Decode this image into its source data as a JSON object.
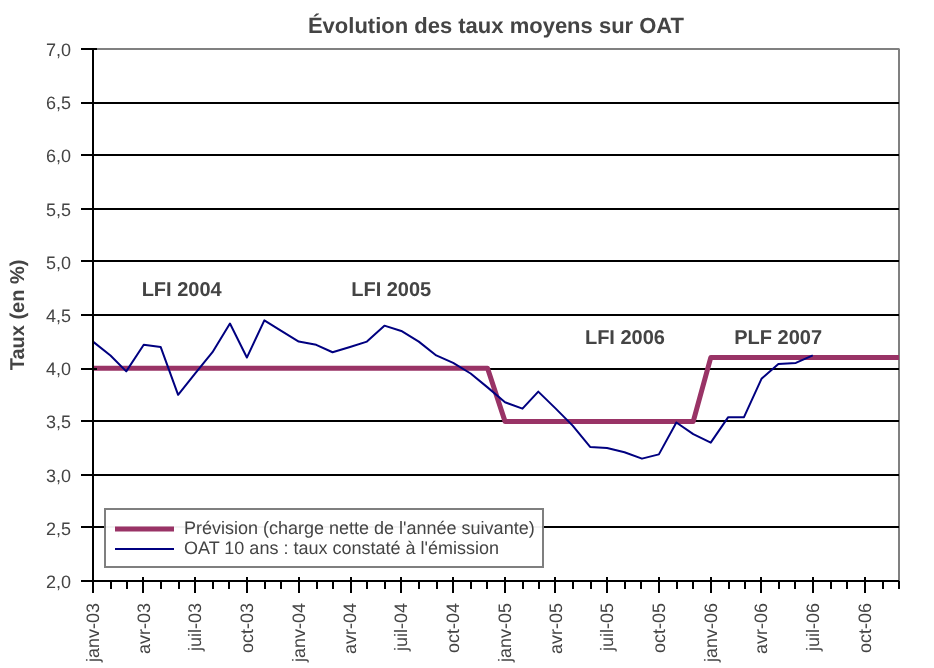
{
  "chart_data": {
    "type": "line",
    "title": "Évolution des taux moyens sur OAT",
    "ylabel": "Taux (en %)",
    "xlim": [
      "2003-01",
      "2006-12"
    ],
    "xticks": [
      {
        "value": "2003-01",
        "label": "janv-03"
      },
      {
        "value": "2003-04",
        "label": "avr-03"
      },
      {
        "value": "2003-07",
        "label": "juil-03"
      },
      {
        "value": "2003-10",
        "label": "oct-03"
      },
      {
        "value": "2004-01",
        "label": "janv-04"
      },
      {
        "value": "2004-04",
        "label": "avr-04"
      },
      {
        "value": "2004-07",
        "label": "juil-04"
      },
      {
        "value": "2004-10",
        "label": "oct-04"
      },
      {
        "value": "2005-01",
        "label": "janv-05"
      },
      {
        "value": "2005-04",
        "label": "avr-05"
      },
      {
        "value": "2005-07",
        "label": "juil-05"
      },
      {
        "value": "2005-10",
        "label": "oct-05"
      },
      {
        "value": "2006-01",
        "label": "janv-06"
      },
      {
        "value": "2006-04",
        "label": "avr-06"
      },
      {
        "value": "2006-07",
        "label": "juil-06"
      },
      {
        "value": "2006-10",
        "label": "oct-06"
      }
    ],
    "ylim": [
      2,
      7
    ],
    "yticks": [
      {
        "value": 2,
        "label": "2,0"
      },
      {
        "value": 2.5,
        "label": "2,5"
      },
      {
        "value": 3,
        "label": "3,0"
      },
      {
        "value": 3.5,
        "label": "3,5"
      },
      {
        "value": 4,
        "label": "4,0"
      },
      {
        "value": 4.5,
        "label": "4,5"
      },
      {
        "value": 5,
        "label": "5,0"
      },
      {
        "value": 5.5,
        "label": "5,5"
      },
      {
        "value": 6,
        "label": "6,0"
      },
      {
        "value": 6.5,
        "label": "6,5"
      },
      {
        "value": 7,
        "label": "7,0"
      }
    ],
    "grid": "y",
    "legend": "bottom left",
    "marker": "none",
    "line_style": "solid",
    "series": [
      {
        "name": "Prévision (charge nette de l'année suivante)",
        "color": "#993366",
        "x": [
          "2003-01",
          "2004-12",
          "2005-01",
          "2005-12",
          "2006-01",
          "2006-12"
        ],
        "values": [
          4.0,
          4.0,
          3.5,
          3.5,
          4.1,
          4.1
        ]
      },
      {
        "name": "OAT 10 ans : taux constaté à l'émission",
        "color": "#000080",
        "x": [
          "2003-01",
          "2003-02",
          "2003-03",
          "2003-04",
          "2003-05",
          "2003-06",
          "2003-07",
          "2003-08",
          "2003-09",
          "2003-10",
          "2003-11",
          "2003-12",
          "2004-01",
          "2004-02",
          "2004-03",
          "2004-04",
          "2004-05",
          "2004-06",
          "2004-07",
          "2004-08",
          "2004-09",
          "2004-10",
          "2004-11",
          "2004-12",
          "2005-01",
          "2005-02",
          "2005-03",
          "2005-04",
          "2005-05",
          "2005-06",
          "2005-07",
          "2005-08",
          "2005-09",
          "2005-10",
          "2005-11",
          "2005-12",
          "2006-01",
          "2006-02",
          "2006-03",
          "2006-04",
          "2006-05",
          "2006-06",
          "2006-07"
        ],
        "values": [
          4.25,
          4.12,
          3.97,
          4.22,
          4.2,
          3.75,
          3.95,
          4.15,
          4.42,
          4.1,
          4.45,
          4.35,
          4.25,
          4.22,
          4.15,
          4.2,
          4.25,
          4.4,
          4.35,
          4.25,
          4.12,
          4.05,
          3.95,
          3.82,
          3.68,
          3.62,
          3.78,
          3.62,
          3.46,
          3.26,
          3.25,
          3.21,
          3.15,
          3.19,
          3.49,
          3.38,
          3.3,
          3.54,
          3.54,
          3.9,
          4.04,
          4.05,
          4.12
        ]
      }
    ],
    "annotations": [
      "LFI 2004",
      "LFI 2005",
      "LFI 2006",
      "PLF 2007"
    ]
  }
}
